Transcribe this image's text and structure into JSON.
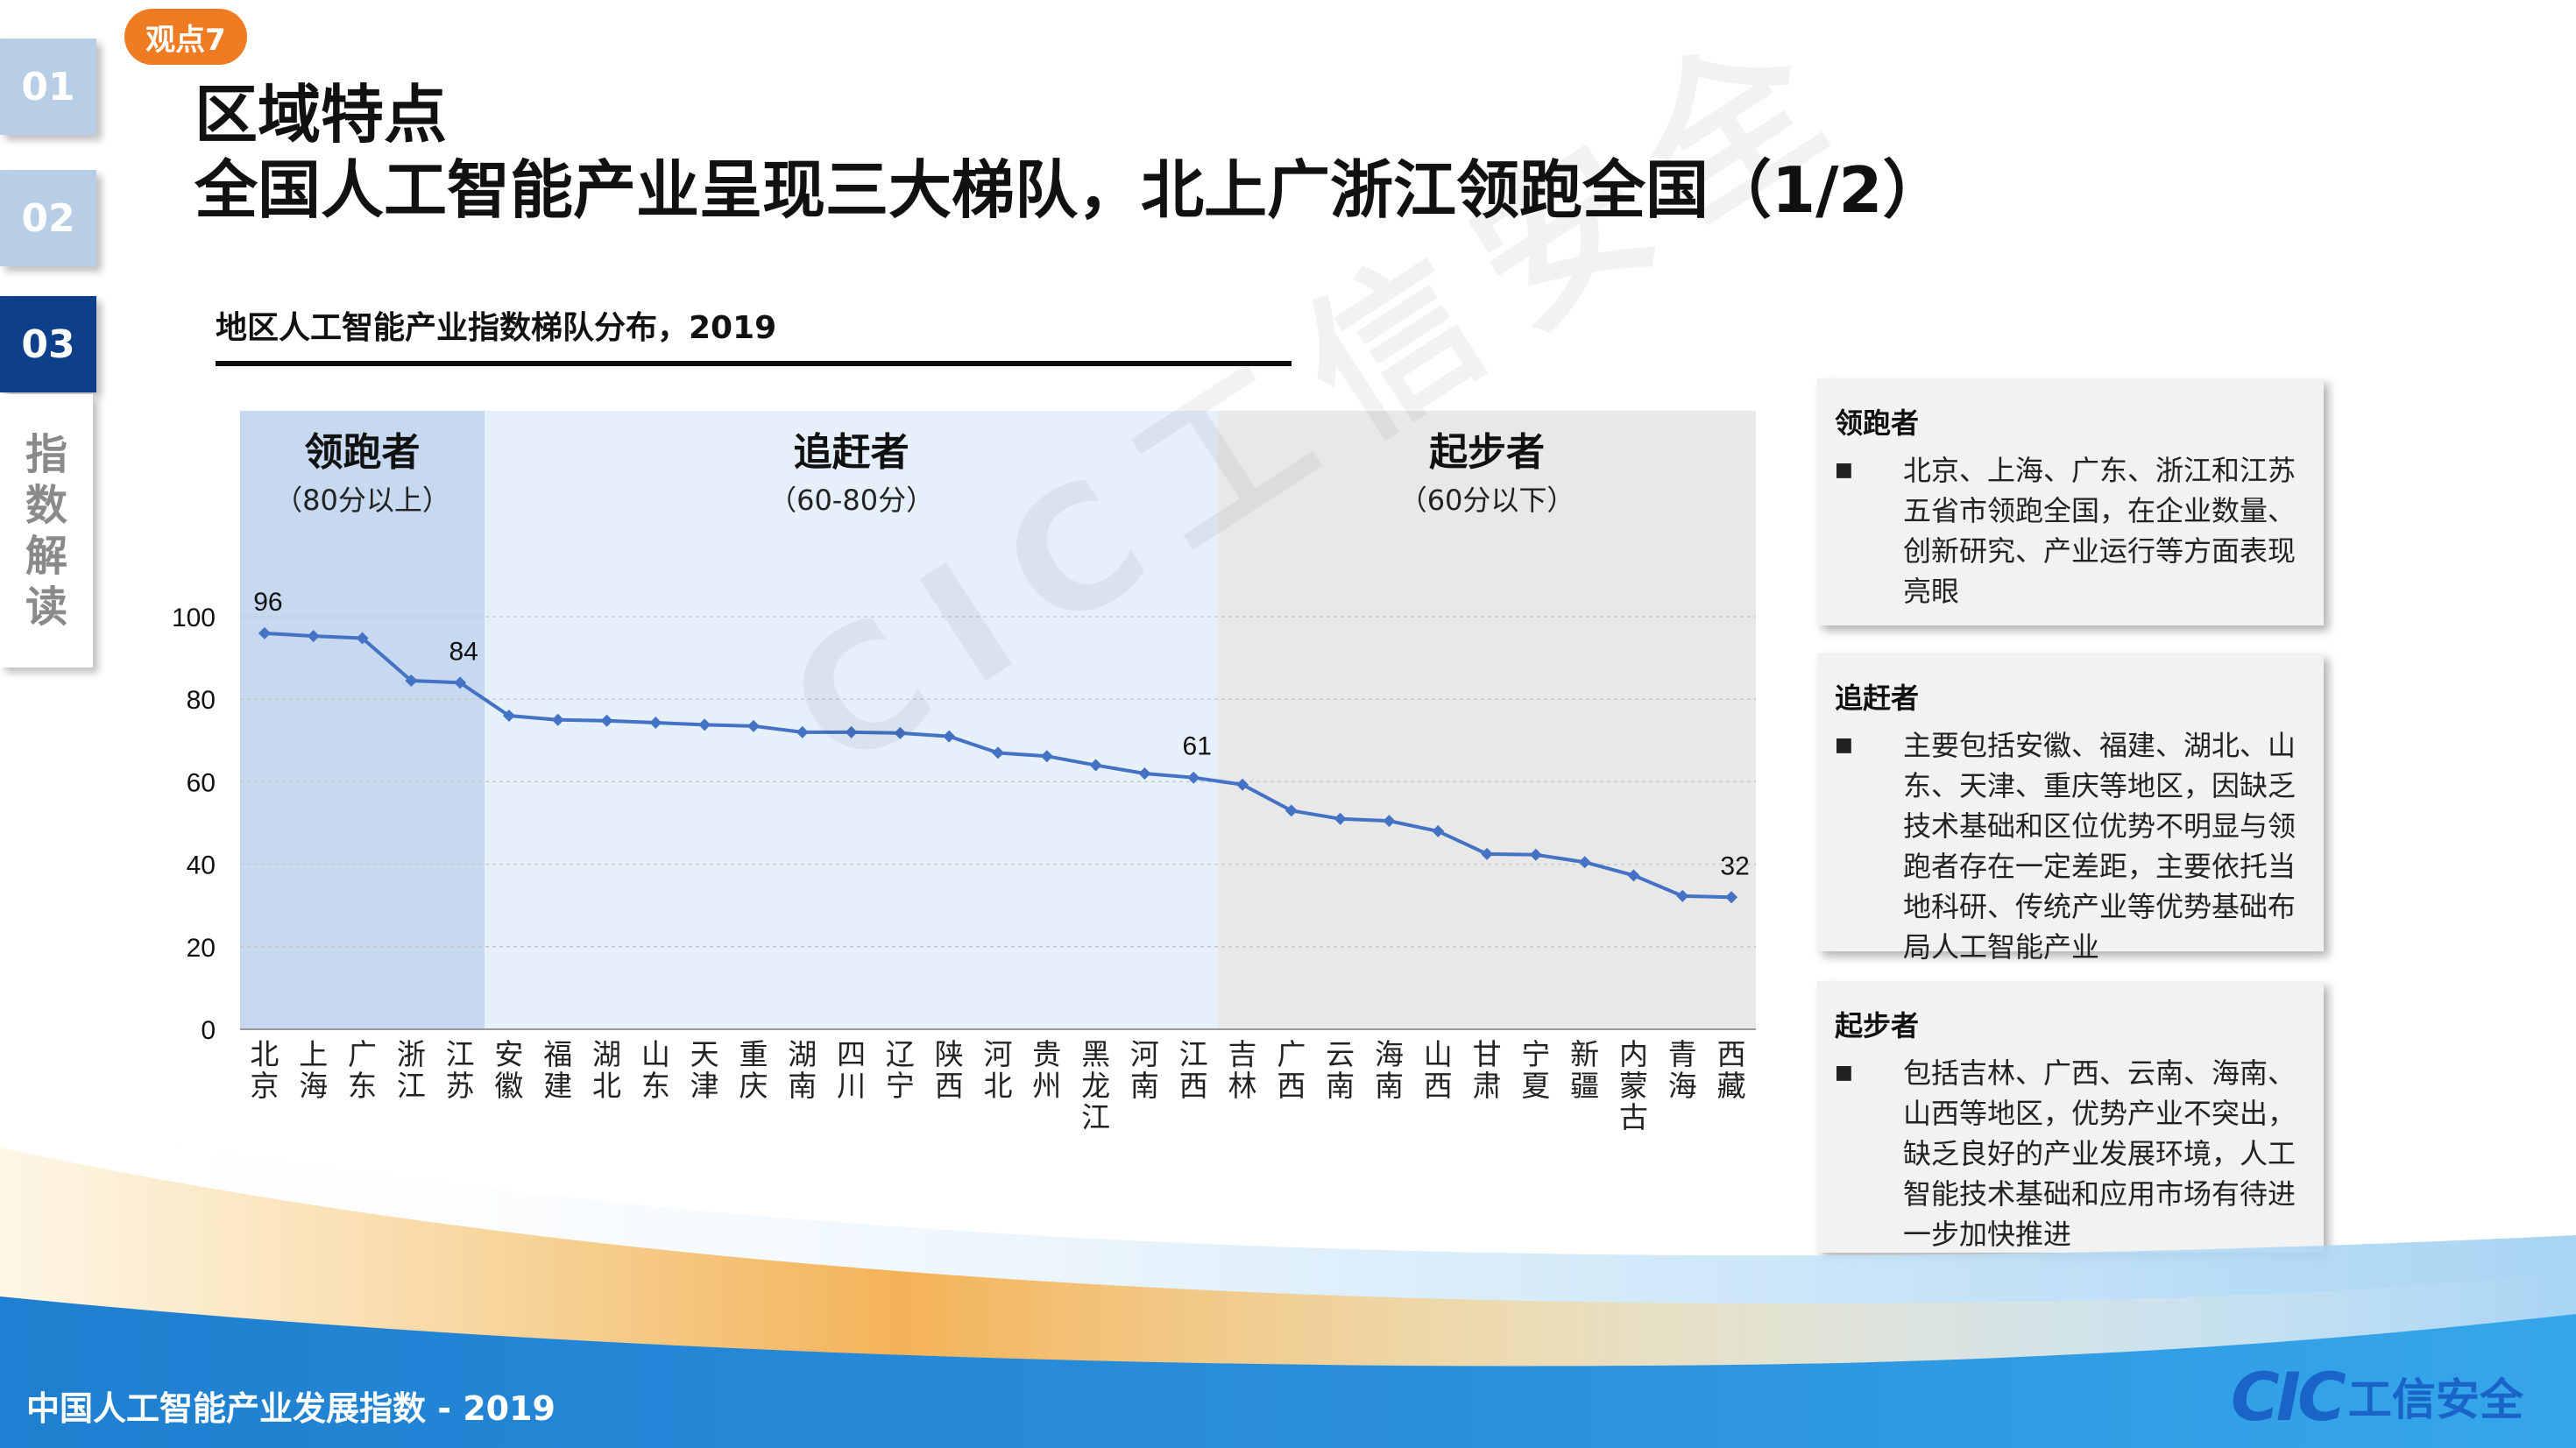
{
  "nav": {
    "tabs": [
      {
        "label": "01",
        "active": false
      },
      {
        "label": "02",
        "active": false
      },
      {
        "label": "03",
        "active": true
      }
    ],
    "side_label": [
      "指",
      "数",
      "解",
      "读"
    ]
  },
  "badge": "观点7",
  "title": {
    "line1": "区域特点",
    "line2": "全国人工智能产业呈现三大梯队，北上广浙江领跑全国（1/2）"
  },
  "chart_title": "地区人工智能产业指数梯队分布，2019",
  "chart_data": {
    "type": "line",
    "categories": [
      "北京",
      "上海",
      "广东",
      "浙江",
      "江苏",
      "安徽",
      "福建",
      "湖北",
      "山东",
      "天津",
      "重庆",
      "湖南",
      "四川",
      "辽宁",
      "陕西",
      "河北",
      "贵州",
      "黑龙江",
      "河南",
      "江西",
      "吉林",
      "广西",
      "云南",
      "海南",
      "山西",
      "甘肃",
      "宁夏",
      "新疆",
      "内蒙古",
      "青海",
      "西藏"
    ],
    "values": [
      96,
      95.3,
      94.8,
      84.5,
      84,
      76,
      75,
      74.8,
      74.3,
      73.8,
      73.5,
      72,
      72,
      71.8,
      71,
      67,
      66.2,
      64,
      62,
      61,
      59.3,
      53,
      51,
      50.5,
      48,
      42.5,
      42.3,
      40.5,
      37.3,
      32.3,
      32
    ],
    "data_labels": [
      {
        "index": 0,
        "text": "96"
      },
      {
        "index": 4,
        "text": "84"
      },
      {
        "index": 19,
        "text": "61"
      },
      {
        "index": 30,
        "text": "32"
      }
    ],
    "ylim": [
      0,
      100
    ],
    "yticks": [
      0,
      20,
      40,
      60,
      80,
      100
    ],
    "tiers": [
      {
        "name": "领跑者",
        "range": "（80分以上）",
        "start": 0,
        "end": 4,
        "color": "#c6d9f0"
      },
      {
        "name": "追赶者",
        "range": "（60-80分）",
        "start": 5,
        "end": 19,
        "color": "#e6f0fa"
      },
      {
        "name": "起步者",
        "range": "（60分以下）",
        "start": 20,
        "end": 30,
        "color": "#e8e8e8"
      }
    ],
    "line_color": "#4472c4",
    "grid": true
  },
  "panels": [
    {
      "title": "领跑者",
      "bullet": "■",
      "text": "北京、上海、广东、浙江和江苏五省市领跑全国，在企业数量、创新研究、产业运行等方面表现亮眼"
    },
    {
      "title": "追赶者",
      "bullet": "■",
      "text": "主要包括安徽、福建、湖北、山东、天津、重庆等地区，因缺乏技术基础和区位优势不明显与领跑者存在一定差距，主要依托当地科研、传统产业等优势基础布局人工智能产业"
    },
    {
      "title": "起步者",
      "bullet": "■",
      "text": "包括吉林、广西、云南、海南、山西等地区，优势产业不突出，缺乏良好的产业发展环境，人工智能技术基础和应用市场有待进一步加快推进"
    }
  ],
  "footer": {
    "text": "中国人工智能产业发展指数 - 2019",
    "logo_mark": "CIC",
    "logo_text": "工信安全"
  },
  "watermark": "CIC工信安全"
}
